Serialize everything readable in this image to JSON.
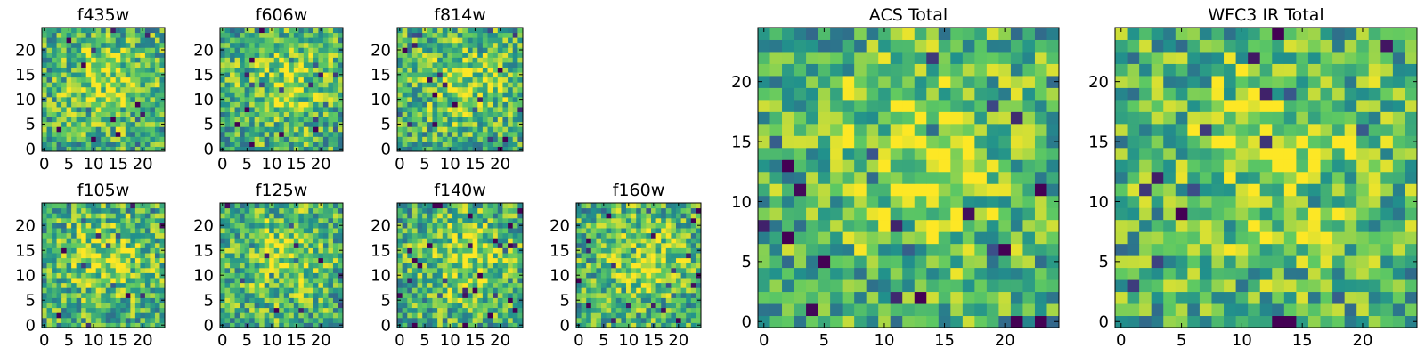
{
  "chart_data": [
    {
      "type": "heatmap",
      "title": "f435w",
      "rows": 25,
      "cols": 25,
      "xlim": [
        0,
        25
      ],
      "ylim": [
        0,
        25
      ],
      "xticks": [
        0,
        5,
        10,
        15,
        20
      ],
      "yticks": [
        0,
        5,
        10,
        15,
        20
      ],
      "seed": 11
    },
    {
      "type": "heatmap",
      "title": "f606w",
      "rows": 25,
      "cols": 25,
      "xlim": [
        0,
        25
      ],
      "ylim": [
        0,
        25
      ],
      "xticks": [
        0,
        5,
        10,
        15,
        20
      ],
      "yticks": [
        0,
        5,
        10,
        15,
        20
      ],
      "seed": 23
    },
    {
      "type": "heatmap",
      "title": "f814w",
      "rows": 25,
      "cols": 25,
      "xlim": [
        0,
        25
      ],
      "ylim": [
        0,
        25
      ],
      "xticks": [
        0,
        5,
        10,
        15,
        20
      ],
      "yticks": [
        0,
        5,
        10,
        15,
        20
      ],
      "seed": 37
    },
    {
      "type": "heatmap",
      "title": "f105w",
      "rows": 25,
      "cols": 25,
      "xlim": [
        0,
        25
      ],
      "ylim": [
        0,
        25
      ],
      "xticks": [
        0,
        5,
        10,
        15,
        20
      ],
      "yticks": [
        0,
        5,
        10,
        15,
        20
      ],
      "seed": 41
    },
    {
      "type": "heatmap",
      "title": "f125w",
      "rows": 25,
      "cols": 25,
      "xlim": [
        0,
        25
      ],
      "ylim": [
        0,
        25
      ],
      "xticks": [
        0,
        5,
        10,
        15,
        20
      ],
      "yticks": [
        0,
        5,
        10,
        15,
        20
      ],
      "seed": 53
    },
    {
      "type": "heatmap",
      "title": "f140w",
      "rows": 25,
      "cols": 25,
      "xlim": [
        0,
        25
      ],
      "ylim": [
        0,
        25
      ],
      "xticks": [
        0,
        5,
        10,
        15,
        20
      ],
      "yticks": [
        0,
        5,
        10,
        15,
        20
      ],
      "seed": 67
    },
    {
      "type": "heatmap",
      "title": "f160w",
      "rows": 25,
      "cols": 25,
      "xlim": [
        0,
        25
      ],
      "ylim": [
        0,
        25
      ],
      "xticks": [
        0,
        5,
        10,
        15,
        20
      ],
      "yticks": [
        0,
        5,
        10,
        15,
        20
      ],
      "seed": 71
    },
    {
      "type": "heatmap",
      "title": "ACS Total",
      "rows": 25,
      "cols": 25,
      "xlim": [
        0,
        25
      ],
      "ylim": [
        0,
        25
      ],
      "xticks": [
        0,
        5,
        10,
        15,
        20
      ],
      "yticks": [
        0,
        5,
        10,
        15,
        20
      ],
      "seed": 83
    },
    {
      "type": "heatmap",
      "title": "WFC3 IR Total",
      "rows": 25,
      "cols": 25,
      "xlim": [
        0,
        25
      ],
      "ylim": [
        0,
        25
      ],
      "xticks": [
        0,
        5,
        10,
        15,
        20
      ],
      "yticks": [
        0,
        5,
        10,
        15,
        20
      ],
      "seed": 97
    }
  ],
  "colormap": [
    "#440154",
    "#3b528b",
    "#21918c",
    "#5ec962",
    "#fde725"
  ]
}
